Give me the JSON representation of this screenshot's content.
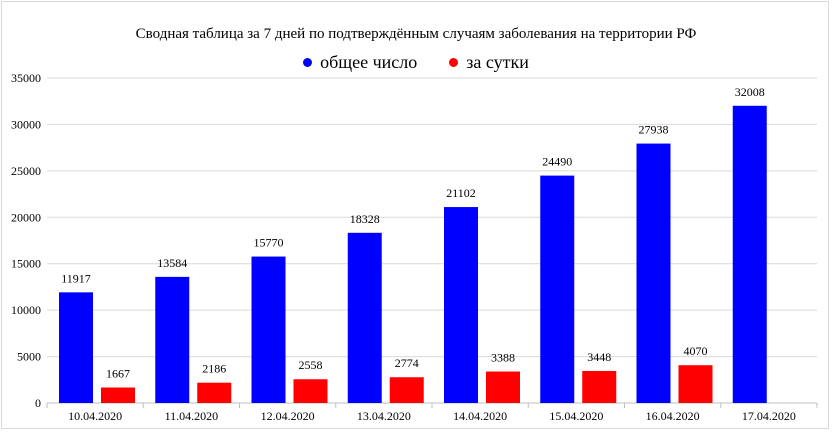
{
  "chart_data": {
    "type": "bar",
    "title": "Сводная таблица за 7 дней по подтверждённым случаям заболевания на территории РФ",
    "categories": [
      "10.04.2020",
      "11.04.2020",
      "12.04.2020",
      "13.04.2020",
      "14.04.2020",
      "15.04.2020",
      "16.04.2020",
      "17.04.2020"
    ],
    "series": [
      {
        "name": "общее число",
        "color": "#0000ff",
        "values": [
          11917,
          13584,
          15770,
          18328,
          21102,
          24490,
          27938,
          32008
        ]
      },
      {
        "name": "за сутки",
        "color": "#ff0000",
        "values": [
          1667,
          2186,
          2558,
          2774,
          3388,
          3448,
          4070,
          null
        ]
      }
    ],
    "ylim": [
      0,
      35000
    ],
    "yticks": [
      0,
      5000,
      10000,
      15000,
      20000,
      25000,
      30000,
      35000
    ],
    "grid": true,
    "legend_position": "top-center",
    "xlabel": "",
    "ylabel": ""
  }
}
